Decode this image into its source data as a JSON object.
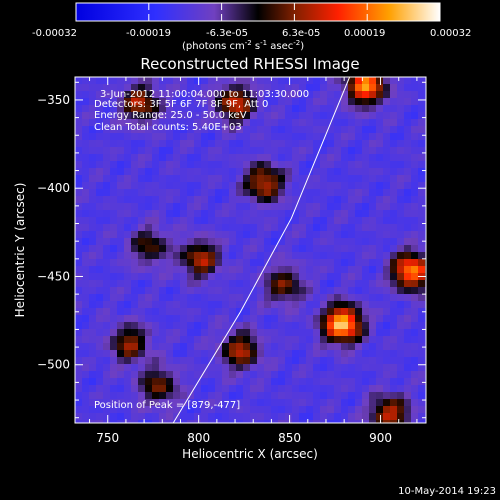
{
  "colorbar": {
    "ticks": [
      "-0.00032",
      "-0.00019",
      "-6.3e-05",
      "6.3e-05",
      "0.00019",
      "0.00032"
    ],
    "units_prefix": "(photons cm",
    "units_exp1": "-2",
    "units_mid": " s",
    "units_exp2": "-1",
    "units_mid2": " asec",
    "units_exp3": "-2",
    "units_suffix": ")"
  },
  "plot": {
    "title": "Reconstructed RHESSI Image",
    "annotations": [
      "3-Jun-2012 11:00:04.000 to 11:03:30.000",
      "Detectors: 3F 5F 6F 7F 8F 9F, Att 0",
      "Energy Range: 25.0 - 50.0 keV",
      "Clean    Total counts: 5.40E+03"
    ],
    "peak_label": "Position of Peak = [879,-477]",
    "xlabel": "Heliocentric X (arcsec)",
    "ylabel": "Heliocentric Y (arcsec)"
  },
  "footer": {
    "date": "10-May-2014 19:23"
  },
  "chart_data": {
    "type": "heatmap",
    "title": "Reconstructed RHESSI Image",
    "xlabel": "Heliocentric X (arcsec)",
    "ylabel": "Heliocentric Y (arcsec)",
    "xlim": [
      732,
      925
    ],
    "ylim": [
      -533,
      -337
    ],
    "x_ticks": [
      750,
      800,
      850,
      900
    ],
    "y_ticks": [
      -350,
      -400,
      -450,
      -500
    ],
    "x_tick_labels": [
      "750",
      "800",
      "850",
      "900"
    ],
    "y_tick_labels": [
      "−350",
      "−400",
      "−450",
      "−500"
    ],
    "colorbar_range": [
      -0.00032,
      0.00032
    ],
    "peak": [
      879,
      -477
    ],
    "limb": [
      [
        786,
        -533
      ],
      [
        823,
        -470
      ],
      [
        851,
        -417
      ],
      [
        883,
        -337
      ]
    ],
    "bright_sources": [
      {
        "x": 879,
        "y": -477,
        "v": 1.0
      },
      {
        "x": 917,
        "y": -447,
        "v": 0.85
      },
      {
        "x": 892,
        "y": -342,
        "v": 0.85
      },
      {
        "x": 820,
        "y": -352,
        "v": 0.6
      },
      {
        "x": 768,
        "y": -352,
        "v": 0.55
      },
      {
        "x": 836,
        "y": -397,
        "v": 0.6
      },
      {
        "x": 801,
        "y": -440,
        "v": 0.55
      },
      {
        "x": 823,
        "y": -492,
        "v": 0.55
      },
      {
        "x": 762,
        "y": -488,
        "v": 0.5
      },
      {
        "x": 778,
        "y": -512,
        "v": 0.45
      },
      {
        "x": 905,
        "y": -528,
        "v": 0.6
      },
      {
        "x": 847,
        "y": -455,
        "v": 0.45
      },
      {
        "x": 773,
        "y": -433,
        "v": 0.4
      }
    ]
  },
  "colors": {
    "background": "#000000",
    "text": "#ffffff",
    "limb": "#ffffff"
  }
}
